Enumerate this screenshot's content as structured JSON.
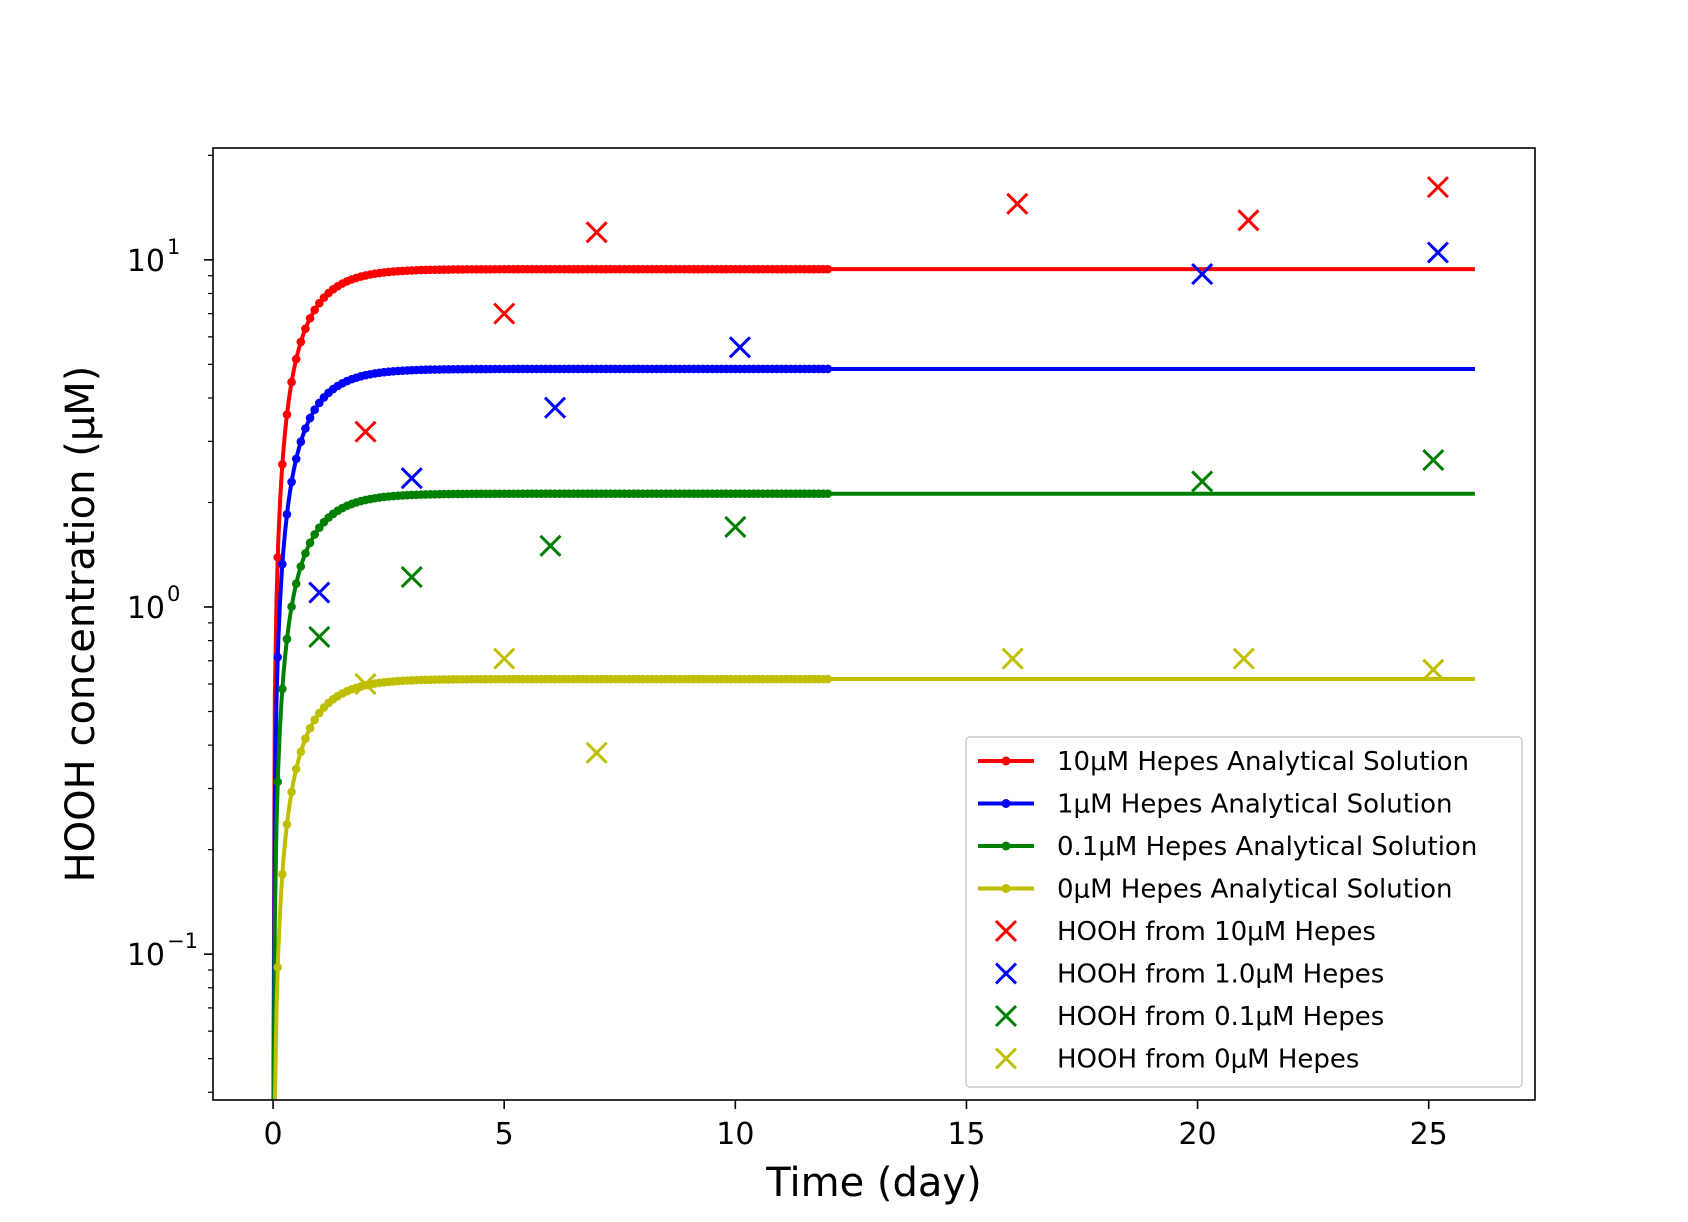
{
  "chart_data": {
    "type": "line",
    "title": "",
    "xlabel": "Time (day)",
    "ylabel": "HOOH concentration (μM)",
    "xlim": [
      -1.3,
      27.3
    ],
    "ylim": [
      0.038,
      21
    ],
    "yscale": "log",
    "grid": false,
    "legend_position": "lower-right",
    "x_ticks": [
      {
        "value": 0,
        "label": "0"
      },
      {
        "value": 5,
        "label": "5"
      },
      {
        "value": 10,
        "label": "10"
      },
      {
        "value": 15,
        "label": "15"
      },
      {
        "value": 20,
        "label": "20"
      },
      {
        "value": 25,
        "label": "25"
      }
    ],
    "y_ticks": [
      {
        "value": 0.1,
        "base": "10",
        "exp": "−1"
      },
      {
        "value": 1,
        "base": "10",
        "exp": "0"
      },
      {
        "value": 10,
        "base": "10",
        "exp": "1"
      }
    ],
    "model_series": [
      {
        "name": "10μM Hepes Analytical Solution",
        "color": "#ff0000",
        "steady_state": 9.4,
        "rate": 1.6,
        "t_end": 26
      },
      {
        "name": "1μM Hepes Analytical Solution",
        "color": "#0000ff",
        "steady_state": 4.85,
        "rate": 1.6,
        "t_end": 26
      },
      {
        "name": "0.1μM Hepes Analytical Solution",
        "color": "#008000",
        "steady_state": 2.12,
        "rate": 1.6,
        "t_end": 26
      },
      {
        "name": "0μM Hepes Analytical Solution",
        "color": "#bfbf00",
        "steady_state": 0.62,
        "rate": 1.6,
        "t_end": 26
      }
    ],
    "observed_series": [
      {
        "name": "HOOH from 10μM Hepes",
        "color": "#ff0000",
        "points": [
          {
            "x": 2,
            "y": 3.2
          },
          {
            "x": 5,
            "y": 7.0
          },
          {
            "x": 7,
            "y": 12.0
          },
          {
            "x": 16.1,
            "y": 14.5
          },
          {
            "x": 21.1,
            "y": 13.0
          },
          {
            "x": 25.2,
            "y": 16.2
          }
        ]
      },
      {
        "name": "HOOH from 1.0μM Hepes",
        "color": "#0000ff",
        "points": [
          {
            "x": 1,
            "y": 1.1
          },
          {
            "x": 3,
            "y": 2.35
          },
          {
            "x": 6.1,
            "y": 3.75
          },
          {
            "x": 10.1,
            "y": 5.6
          },
          {
            "x": 20.1,
            "y": 9.1
          },
          {
            "x": 25.2,
            "y": 10.5
          }
        ]
      },
      {
        "name": "HOOH from 0.1μM Hepes",
        "color": "#008000",
        "points": [
          {
            "x": 1,
            "y": 0.82
          },
          {
            "x": 3,
            "y": 1.22
          },
          {
            "x": 6,
            "y": 1.5
          },
          {
            "x": 10,
            "y": 1.7
          },
          {
            "x": 20.1,
            "y": 2.3
          },
          {
            "x": 25.1,
            "y": 2.65
          }
        ]
      },
      {
        "name": "HOOH from 0μM Hepes",
        "color": "#bfbf00",
        "points": [
          {
            "x": 2,
            "y": 0.6
          },
          {
            "x": 5,
            "y": 0.71
          },
          {
            "x": 7,
            "y": 0.38
          },
          {
            "x": 16,
            "y": 0.71
          },
          {
            "x": 21,
            "y": 0.71
          },
          {
            "x": 25.1,
            "y": 0.66
          }
        ]
      }
    ]
  }
}
